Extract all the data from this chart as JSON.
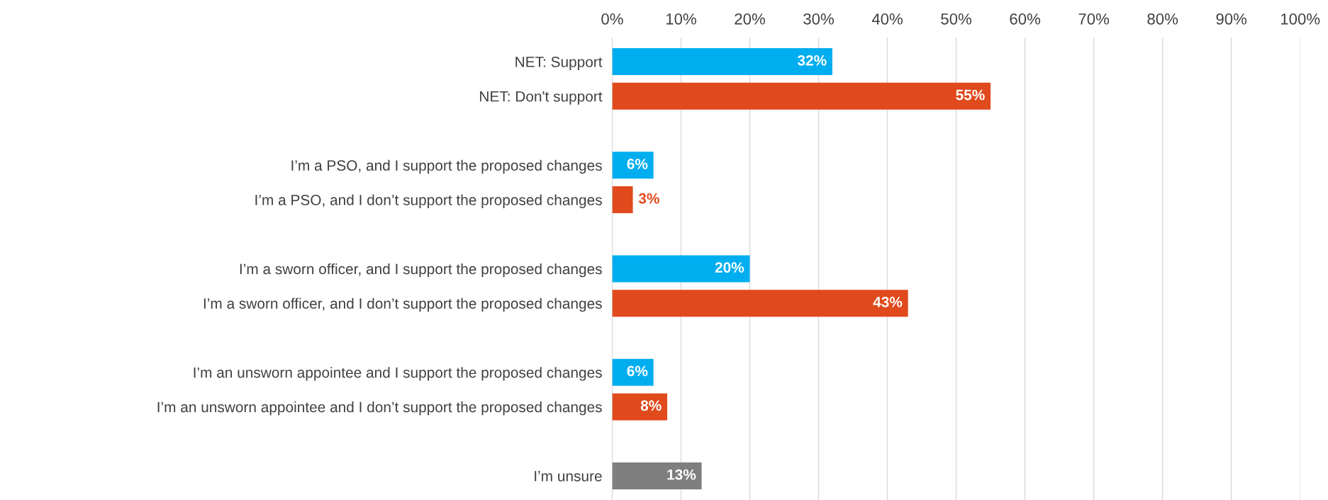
{
  "chart_data": {
    "type": "bar",
    "orientation": "horizontal",
    "categories": [
      "NET: Support",
      "NET: Don't support",
      null,
      "I’m a PSO, and I support the proposed changes",
      "I’m a PSO, and I don’t support the proposed changes",
      null,
      "I’m a sworn officer, and I support the proposed changes",
      "I’m a sworn officer, and I don’t support the proposed changes",
      null,
      "I’m an unsworn appointee and I support the proposed changes",
      "I’m an unsworn appointee and I don’t support the proposed changes",
      null,
      "I’m unsure"
    ],
    "values": [
      32,
      55,
      null,
      6,
      3,
      null,
      20,
      43,
      null,
      6,
      8,
      null,
      13
    ],
    "colors": [
      "#00aeef",
      "#e04a1c",
      null,
      "#00aeef",
      "#e04a1c",
      null,
      "#00aeef",
      "#e04a1c",
      null,
      "#00aeef",
      "#e04a1c",
      null,
      "#7f7f7f"
    ],
    "value_labels": [
      "32%",
      "55%",
      null,
      "6%",
      "3%",
      null,
      "20%",
      "43%",
      null,
      "6%",
      "8%",
      null,
      "13%"
    ],
    "xlim": [
      0,
      100
    ],
    "xticks": [
      {
        "value": 0,
        "label": "0%"
      },
      {
        "value": 10,
        "label": "10%"
      },
      {
        "value": 20,
        "label": "20%"
      },
      {
        "value": 30,
        "label": "30%"
      },
      {
        "value": 40,
        "label": "40%"
      },
      {
        "value": 50,
        "label": "50%"
      },
      {
        "value": 60,
        "label": "60%"
      },
      {
        "value": 70,
        "label": "70%"
      },
      {
        "value": 80,
        "label": "80%"
      },
      {
        "value": 90,
        "label": "90%"
      },
      {
        "value": 100,
        "label": "100%"
      }
    ],
    "grid": "x"
  }
}
